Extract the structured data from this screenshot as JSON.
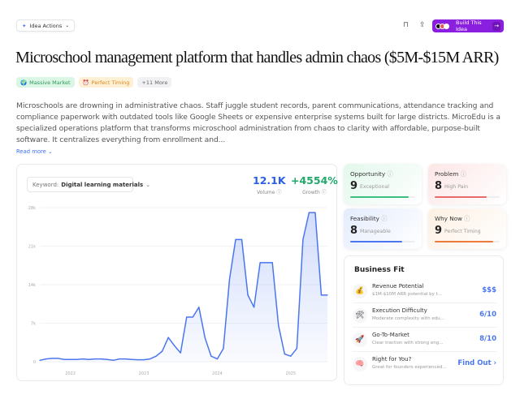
{
  "header": {
    "idea_actions": "Idea Actions",
    "build_button": "Build This Idea",
    "icons": [
      "sparkle-icon",
      "chevron-down-icon",
      "bookmark-icon",
      "share-icon",
      "arrow-right-icon"
    ]
  },
  "title": "Microschool management platform that handles admin chaos ($5M-$15M ARR)",
  "tags": [
    {
      "icon": "globe-icon",
      "label": "Massive Market",
      "color": "#2e9a5c",
      "bg": "#dcf6e6"
    },
    {
      "icon": "alarm-clock-icon",
      "label": "Perfect Timing",
      "color": "#d98a1c",
      "bg": "#fdf0d5"
    },
    {
      "label": "+11 More",
      "color": "#666",
      "bg": "#f1f1f3"
    }
  ],
  "description": "Microschools are drowning in administrative chaos. Staff juggle student records, parent communications, attendance tracking and compliance paperwork with outdated tools like Google Sheets or expensive enterprise systems built for large districts. MicroEdu is a specialized operations platform that transforms microschool administration from chaos to clarity with affordable, purpose-built software. It centralizes everything from enrollment and...",
  "read_more": "Read more",
  "trend": {
    "keyword_label": "Keyword:",
    "keyword": "Digital learning materials",
    "volume": "12.1K",
    "volume_label": "Volume",
    "growth": "+4554%",
    "growth_label": "Growth",
    "volume_color": "#2a5ee8",
    "growth_color": "#1fa86a"
  },
  "chart_data": {
    "type": "area",
    "line_color": "#4a76ef",
    "grid": true,
    "ylim": [
      0,
      28000
    ],
    "y_ticks": [
      "0",
      "7k",
      "14k",
      "21k",
      "28k"
    ],
    "x_ticks": [
      "2022",
      "2023",
      "2024",
      "2025"
    ],
    "x": [
      "2021-08",
      "2021-09",
      "2021-10",
      "2021-11",
      "2021-12",
      "2022-01",
      "2022-02",
      "2022-03",
      "2022-04",
      "2022-05",
      "2022-06",
      "2022-07",
      "2022-08",
      "2022-09",
      "2022-10",
      "2022-11",
      "2022-12",
      "2023-01",
      "2023-02",
      "2023-03",
      "2023-04",
      "2023-05",
      "2023-06",
      "2023-07",
      "2023-08",
      "2023-09",
      "2023-10",
      "2023-11",
      "2023-12",
      "2024-01",
      "2024-02",
      "2024-03",
      "2024-04",
      "2024-05",
      "2024-06",
      "2024-07",
      "2024-08",
      "2024-09",
      "2024-10",
      "2024-11",
      "2024-12",
      "2025-01",
      "2025-02",
      "2025-03",
      "2025-04",
      "2025-05",
      "2025-06",
      "2025-07"
    ],
    "values": [
      250,
      500,
      600,
      600,
      400,
      400,
      400,
      500,
      400,
      500,
      500,
      400,
      250,
      500,
      500,
      400,
      350,
      350,
      500,
      1000,
      1900,
      4400,
      2900,
      1600,
      8100,
      8100,
      9900,
      4300,
      1000,
      500,
      2400,
      15000,
      22200,
      22200,
      12100,
      9900,
      18000,
      18000,
      18000,
      6600,
      1400,
      1000,
      2400,
      22200,
      27100,
      27100,
      12100,
      12100
    ]
  },
  "scores": [
    {
      "label": "Opportunity",
      "value": "9",
      "sub": "Exceptional",
      "fraction": 0.9,
      "color": "#3cbf80",
      "bg": "linear-gradient(135deg,#e3f8ec,#fff)"
    },
    {
      "label": "Problem",
      "value": "8",
      "sub": "High Pain",
      "fraction": 0.8,
      "color": "#e86b6b",
      "bg": "linear-gradient(135deg,#fde6e6,#fff)"
    },
    {
      "label": "Feasibility",
      "value": "8",
      "sub": "Manageable",
      "fraction": 0.8,
      "color": "#4a76ef",
      "bg": "linear-gradient(135deg,#e4ecfd,#fff)"
    },
    {
      "label": "Why Now",
      "value": "9",
      "sub": "Perfect Timing",
      "fraction": 0.9,
      "color": "#ef7a3a",
      "bg": "linear-gradient(135deg,#fdf0e3,#fff)"
    }
  ],
  "business_fit": {
    "title": "Business Fit",
    "rows": [
      {
        "icon": "money-bag-icon",
        "glyph": "💰",
        "title": "Revenue Potential",
        "sub": "$1M-$10M ARR potential by t...",
        "value": "$$$"
      },
      {
        "icon": "tools-icon",
        "glyph": "🛠",
        "title": "Execution Difficulty",
        "sub": "Moderate complexity with edu...",
        "value": "6/10"
      },
      {
        "icon": "rocket-icon",
        "glyph": "🚀",
        "title": "Go-To-Market",
        "sub": "Clear traction with strong eng...",
        "value": "8/10"
      },
      {
        "icon": "brain-icon",
        "glyph": "🧠",
        "title": "Right for You?",
        "sub": "Great for founders experienced...",
        "value": "Find Out ›"
      }
    ]
  }
}
